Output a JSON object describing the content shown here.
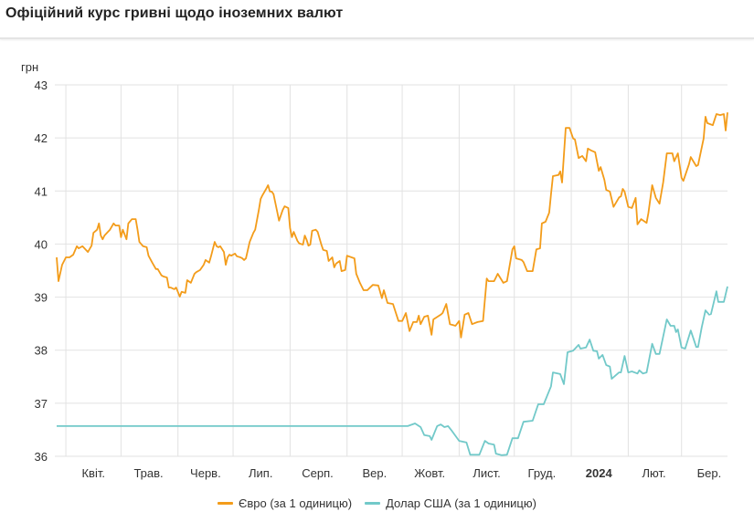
{
  "title": "Офіційний курс гривні щодо іноземних валют",
  "chart_data": {
    "type": "line",
    "title": "Офіційний курс гривні щодо іноземних валют",
    "ylabel": "грн",
    "xlabel": "",
    "x_unit": "days since 2023-03-27",
    "xlim": [
      0,
      365
    ],
    "ylim": [
      36,
      43
    ],
    "yticks": [
      36,
      37,
      38,
      39,
      40,
      41,
      42,
      43
    ],
    "grid": true,
    "legend_position": "bottom",
    "x_gridlines": [
      5,
      35,
      66,
      96,
      127,
      158,
      188,
      219,
      249,
      280,
      311,
      340
    ],
    "xticks": [
      {
        "day": 20,
        "label": "Квіт.",
        "bold": false
      },
      {
        "day": 50,
        "label": "Трав.",
        "bold": false
      },
      {
        "day": 81,
        "label": "Черв.",
        "bold": false
      },
      {
        "day": 111,
        "label": "Лип.",
        "bold": false
      },
      {
        "day": 142,
        "label": "Серп.",
        "bold": false
      },
      {
        "day": 173,
        "label": "Вер.",
        "bold": false
      },
      {
        "day": 203,
        "label": "Жовт.",
        "bold": false
      },
      {
        "day": 234,
        "label": "Лист.",
        "bold": false
      },
      {
        "day": 264,
        "label": "Груд.",
        "bold": false
      },
      {
        "day": 295,
        "label": "2024",
        "bold": true
      },
      {
        "day": 325,
        "label": "Лют.",
        "bold": false
      },
      {
        "day": 355,
        "label": "Бер.",
        "bold": false
      }
    ],
    "series": [
      {
        "name": "Євро (за 1 одиницю)",
        "color": "#f39c1a",
        "points": [
          [
            0,
            39.75
          ],
          [
            1,
            39.3
          ],
          [
            3,
            39.61
          ],
          [
            5,
            39.75
          ],
          [
            7,
            39.75
          ],
          [
            9,
            39.8
          ],
          [
            11,
            39.96
          ],
          [
            12,
            39.92
          ],
          [
            14,
            39.96
          ],
          [
            17,
            39.85
          ],
          [
            19,
            39.97
          ],
          [
            20,
            40.21
          ],
          [
            22,
            40.27
          ],
          [
            23,
            40.39
          ],
          [
            24,
            40.16
          ],
          [
            25,
            40.09
          ],
          [
            26,
            40.16
          ],
          [
            29,
            40.27
          ],
          [
            31,
            40.39
          ],
          [
            32,
            40.35
          ],
          [
            34,
            40.35
          ],
          [
            35,
            40.13
          ],
          [
            36,
            40.27
          ],
          [
            38,
            40.09
          ],
          [
            39,
            40.39
          ],
          [
            41,
            40.47
          ],
          [
            43,
            40.47
          ],
          [
            44,
            40.27
          ],
          [
            45,
            40.04
          ],
          [
            47,
            39.96
          ],
          [
            49,
            39.94
          ],
          [
            50,
            39.78
          ],
          [
            52,
            39.65
          ],
          [
            54,
            39.53
          ],
          [
            55,
            39.53
          ],
          [
            57,
            39.41
          ],
          [
            58,
            39.39
          ],
          [
            60,
            39.37
          ],
          [
            61,
            39.18
          ],
          [
            62,
            39.18
          ],
          [
            64,
            39.15
          ],
          [
            65,
            39.18
          ],
          [
            67,
            39.01
          ],
          [
            68,
            39.1
          ],
          [
            70,
            39.08
          ],
          [
            71,
            39.32
          ],
          [
            73,
            39.27
          ],
          [
            75,
            39.44
          ],
          [
            76,
            39.47
          ],
          [
            78,
            39.51
          ],
          [
            80,
            39.61
          ],
          [
            81,
            39.7
          ],
          [
            83,
            39.65
          ],
          [
            84,
            39.77
          ],
          [
            86,
            40.04
          ],
          [
            87,
            39.96
          ],
          [
            88,
            39.94
          ],
          [
            89,
            39.96
          ],
          [
            91,
            39.85
          ],
          [
            92,
            39.61
          ],
          [
            93,
            39.75
          ],
          [
            94,
            39.8
          ],
          [
            95,
            39.78
          ],
          [
            97,
            39.82
          ],
          [
            98,
            39.77
          ],
          [
            100,
            39.75
          ],
          [
            101,
            39.73
          ],
          [
            102,
            39.7
          ],
          [
            103,
            39.73
          ],
          [
            105,
            40.04
          ],
          [
            107,
            40.21
          ],
          [
            108,
            40.27
          ],
          [
            110,
            40.64
          ],
          [
            111,
            40.85
          ],
          [
            112,
            40.92
          ],
          [
            114,
            41.04
          ],
          [
            115,
            41.11
          ],
          [
            116,
            40.99
          ],
          [
            117,
            40.99
          ],
          [
            118,
            40.94
          ],
          [
            120,
            40.61
          ],
          [
            121,
            40.44
          ],
          [
            123,
            40.64
          ],
          [
            124,
            40.71
          ],
          [
            126,
            40.68
          ],
          [
            127,
            40.3
          ],
          [
            128,
            40.13
          ],
          [
            129,
            40.23
          ],
          [
            131,
            40.06
          ],
          [
            132,
            40.01
          ],
          [
            134,
            39.99
          ],
          [
            135,
            40.16
          ],
          [
            136,
            40.08
          ],
          [
            137,
            39.97
          ],
          [
            138,
            39.99
          ],
          [
            139,
            40.25
          ],
          [
            141,
            40.27
          ],
          [
            142,
            40.23
          ],
          [
            144,
            39.99
          ],
          [
            145,
            39.89
          ],
          [
            147,
            39.87
          ],
          [
            148,
            39.68
          ],
          [
            150,
            39.75
          ],
          [
            151,
            39.56
          ],
          [
            152,
            39.63
          ],
          [
            154,
            39.68
          ],
          [
            155,
            39.49
          ],
          [
            157,
            39.51
          ],
          [
            158,
            39.78
          ],
          [
            162,
            39.73
          ],
          [
            163,
            39.44
          ],
          [
            165,
            39.27
          ],
          [
            167,
            39.13
          ],
          [
            169,
            39.13
          ],
          [
            172,
            39.23
          ],
          [
            175,
            39.22
          ],
          [
            177,
            38.98
          ],
          [
            178,
            39.13
          ],
          [
            180,
            38.89
          ],
          [
            183,
            38.87
          ],
          [
            186,
            38.55
          ],
          [
            188,
            38.55
          ],
          [
            190,
            38.7
          ],
          [
            192,
            38.36
          ],
          [
            194,
            38.53
          ],
          [
            196,
            38.53
          ],
          [
            197,
            38.65
          ],
          [
            198,
            38.49
          ],
          [
            200,
            38.63
          ],
          [
            202,
            38.65
          ],
          [
            204,
            38.29
          ],
          [
            205,
            38.58
          ],
          [
            209,
            38.67
          ],
          [
            210,
            38.7
          ],
          [
            212,
            38.87
          ],
          [
            214,
            38.49
          ],
          [
            217,
            38.46
          ],
          [
            219,
            38.55
          ],
          [
            220,
            38.24
          ],
          [
            222,
            38.67
          ],
          [
            224,
            38.7
          ],
          [
            226,
            38.49
          ],
          [
            229,
            38.53
          ],
          [
            232,
            38.55
          ],
          [
            234,
            39.35
          ],
          [
            235,
            39.3
          ],
          [
            238,
            39.3
          ],
          [
            240,
            39.44
          ],
          [
            243,
            39.27
          ],
          [
            245,
            39.3
          ],
          [
            248,
            39.9
          ],
          [
            249,
            39.96
          ],
          [
            250,
            39.73
          ],
          [
            253,
            39.7
          ],
          [
            254,
            39.66
          ],
          [
            256,
            39.49
          ],
          [
            259,
            39.49
          ],
          [
            261,
            39.9
          ],
          [
            263,
            39.92
          ],
          [
            264,
            40.39
          ],
          [
            266,
            40.42
          ],
          [
            268,
            40.59
          ],
          [
            269,
            40.94
          ],
          [
            270,
            41.28
          ],
          [
            273,
            41.3
          ],
          [
            274,
            41.37
          ],
          [
            275,
            41.16
          ],
          [
            277,
            42.19
          ],
          [
            279,
            42.19
          ],
          [
            281,
            41.99
          ],
          [
            282,
            41.97
          ],
          [
            284,
            41.62
          ],
          [
            286,
            41.66
          ],
          [
            288,
            41.56
          ],
          [
            289,
            41.8
          ],
          [
            291,
            41.76
          ],
          [
            293,
            41.73
          ],
          [
            295,
            41.38
          ],
          [
            296,
            41.45
          ],
          [
            298,
            41.21
          ],
          [
            299,
            41.02
          ],
          [
            301,
            40.99
          ],
          [
            303,
            40.7
          ],
          [
            306,
            40.88
          ],
          [
            307,
            40.9
          ],
          [
            308,
            41.04
          ],
          [
            309,
            40.99
          ],
          [
            311,
            40.7
          ],
          [
            313,
            40.68
          ],
          [
            315,
            40.87
          ],
          [
            316,
            40.37
          ],
          [
            318,
            40.47
          ],
          [
            321,
            40.4
          ],
          [
            322,
            40.59
          ],
          [
            324,
            41.11
          ],
          [
            326,
            40.87
          ],
          [
            328,
            40.76
          ],
          [
            330,
            41.16
          ],
          [
            332,
            41.71
          ],
          [
            335,
            41.71
          ],
          [
            336,
            41.56
          ],
          [
            338,
            41.71
          ],
          [
            340,
            41.25
          ],
          [
            341,
            41.19
          ],
          [
            344,
            41.5
          ],
          [
            345,
            41.64
          ],
          [
            348,
            41.47
          ],
          [
            349,
            41.49
          ],
          [
            352,
            41.99
          ],
          [
            353,
            42.4
          ],
          [
            354,
            42.28
          ],
          [
            357,
            42.24
          ],
          [
            359,
            42.45
          ],
          [
            361,
            42.43
          ],
          [
            363,
            42.45
          ],
          [
            364,
            42.14
          ],
          [
            365,
            42.48
          ]
        ]
      },
      {
        "name": "Долар США (за 1 одиницю)",
        "color": "#72c9c9",
        "points": [
          [
            0,
            36.57
          ],
          [
            191,
            36.57
          ],
          [
            195,
            36.62
          ],
          [
            198,
            36.55
          ],
          [
            200,
            36.4
          ],
          [
            203,
            36.38
          ],
          [
            204,
            36.31
          ],
          [
            207,
            36.57
          ],
          [
            209,
            36.6
          ],
          [
            211,
            36.55
          ],
          [
            213,
            36.57
          ],
          [
            215,
            36.48
          ],
          [
            219,
            36.29
          ],
          [
            223,
            36.26
          ],
          [
            225,
            36.03
          ],
          [
            230,
            36.03
          ],
          [
            233,
            36.29
          ],
          [
            235,
            36.24
          ],
          [
            238,
            36.22
          ],
          [
            239,
            36.05
          ],
          [
            242,
            36.02
          ],
          [
            245,
            36.03
          ],
          [
            248,
            36.34
          ],
          [
            251,
            36.34
          ],
          [
            254,
            36.65
          ],
          [
            259,
            36.67
          ],
          [
            262,
            36.98
          ],
          [
            265,
            36.98
          ],
          [
            269,
            37.32
          ],
          [
            270,
            37.58
          ],
          [
            274,
            37.55
          ],
          [
            276,
            37.36
          ],
          [
            278,
            37.96
          ],
          [
            281,
            37.99
          ],
          [
            284,
            38.1
          ],
          [
            285,
            38.03
          ],
          [
            288,
            38.05
          ],
          [
            290,
            38.2
          ],
          [
            292,
            37.99
          ],
          [
            294,
            37.98
          ],
          [
            295,
            37.84
          ],
          [
            297,
            37.91
          ],
          [
            299,
            37.72
          ],
          [
            301,
            37.69
          ],
          [
            302,
            37.46
          ],
          [
            306,
            37.58
          ],
          [
            307,
            37.58
          ],
          [
            309,
            37.89
          ],
          [
            311,
            37.58
          ],
          [
            313,
            37.6
          ],
          [
            316,
            37.56
          ],
          [
            317,
            37.62
          ],
          [
            319,
            37.56
          ],
          [
            321,
            37.58
          ],
          [
            324,
            38.12
          ],
          [
            326,
            37.93
          ],
          [
            328,
            37.93
          ],
          [
            332,
            38.58
          ],
          [
            334,
            38.46
          ],
          [
            336,
            38.46
          ],
          [
            337,
            38.34
          ],
          [
            338,
            38.39
          ],
          [
            340,
            38.05
          ],
          [
            342,
            38.03
          ],
          [
            345,
            38.37
          ],
          [
            348,
            38.06
          ],
          [
            349,
            38.06
          ],
          [
            351,
            38.43
          ],
          [
            353,
            38.75
          ],
          [
            355,
            38.67
          ],
          [
            356,
            38.68
          ],
          [
            359,
            39.11
          ],
          [
            360,
            38.91
          ],
          [
            363,
            38.91
          ],
          [
            365,
            39.2
          ]
        ]
      }
    ]
  }
}
